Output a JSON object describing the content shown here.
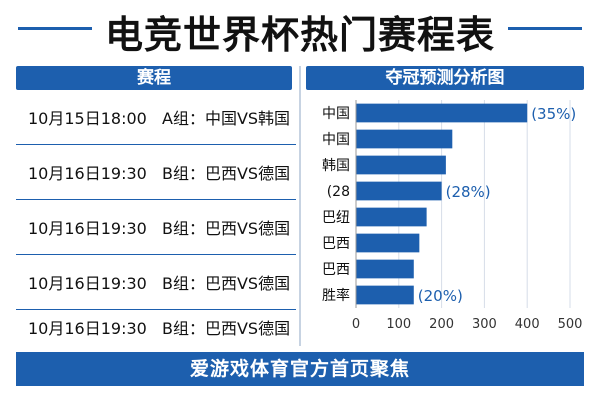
{
  "page": {
    "title": "电竞世界杯热门赛程表",
    "footer": "爱游戏体育官方首页聚焦"
  },
  "schedule": {
    "header": "赛程",
    "rows": [
      {
        "time": "10月15日18:00",
        "match": "A组：中国VS韩国"
      },
      {
        "time": "10月16日19:30",
        "match": "B组：巴西VS德国"
      },
      {
        "time": "10月16日19:30",
        "match": "B组：巴西VS德国"
      },
      {
        "time": "10月16日19:30",
        "match": "B组：巴西VS德国"
      },
      {
        "time": "10月16日19:30",
        "match": "B组：巴西VS德国"
      }
    ]
  },
  "chart_data": {
    "type": "bar",
    "orientation": "horizontal",
    "title": "夺冠预测分析图",
    "categories": [
      "中国",
      "中国",
      "韩国",
      "(28",
      "巴纽",
      "巴西",
      "巴西",
      "胜率"
    ],
    "values": [
      400,
      225,
      210,
      200,
      165,
      148,
      135,
      135
    ],
    "data_labels": [
      "(35%)",
      "",
      "",
      "(28%)",
      "",
      "",
      "",
      "(20%)"
    ],
    "xticks": [
      "0",
      "100",
      "200",
      "300",
      "400",
      "500"
    ],
    "xlim": [
      0,
      500
    ],
    "grid": true,
    "bar_color": "#1d5fae"
  }
}
